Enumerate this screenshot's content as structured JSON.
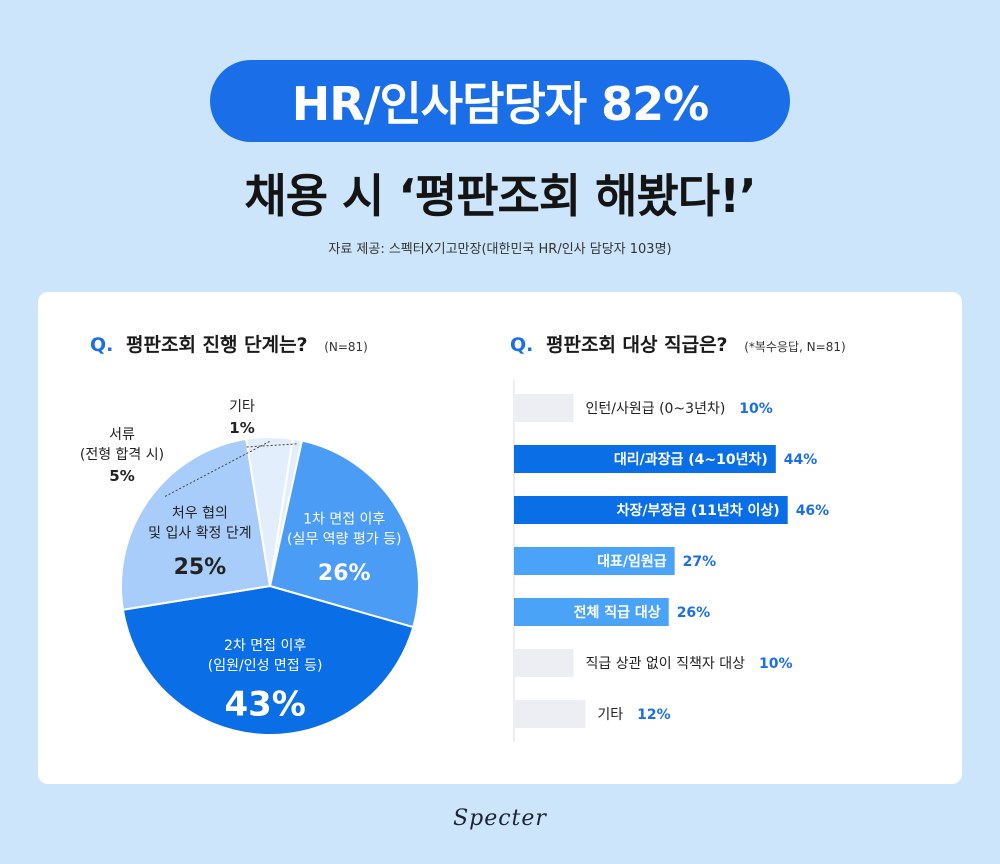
{
  "header": {
    "pill_title": "HR/인사담당자 82%",
    "headline": "채용 시 ‘평판조회 해봤다!’",
    "source": "자료 제공: 스펙터X기고만장(대한민국 HR/인사 담당자 103명)"
  },
  "left_question": {
    "q": "Q.",
    "text": "평판조회 진행 단계는?",
    "note": "(N=81)"
  },
  "right_question": {
    "q": "Q.",
    "text": "평판조회 대상 직급은?",
    "note": "(*복수응답, N=81)"
  },
  "colors": {
    "accent": "#1a6fe8",
    "pie": [
      "#0a6ee6",
      "#4a9cf5",
      "#a9cdfa",
      "#e2eefc"
    ],
    "bars_high": "#0a6ee6",
    "bars_mid": "#4aa3f7",
    "bars_low": "#eceef3",
    "value_blue": "#1a6fe8"
  },
  "chart_data": [
    {
      "type": "pie",
      "title": "평판조회 진행 단계는?",
      "slices": [
        {
          "label": [
            "2차 면접 이후",
            "(임원/인성 면접 등)"
          ],
          "value": 43,
          "display": "43%"
        },
        {
          "label": [
            "처우 협의",
            "및 입사 확정 단계"
          ],
          "value": 25,
          "display": "25%"
        },
        {
          "label": [
            "서류",
            "(전형 합격 시)"
          ],
          "value": 5,
          "display": "5%"
        },
        {
          "label": [
            "기타"
          ],
          "value": 1,
          "display": "1%"
        },
        {
          "label": [
            "1차 면접 이후",
            "(실무 역량 평가 등)"
          ],
          "value": 26,
          "display": "26%"
        }
      ]
    },
    {
      "type": "bar",
      "orientation": "horizontal",
      "title": "평판조회 대상 직급은?",
      "categories": [
        "인턴/사원급 (0~3년차)",
        "대리/과장급 (4~10년차)",
        "차장/부장급 (11년차 이상)",
        "대표/임원급",
        "전체 직급 대상",
        "직급 상관 없이 직책자 대상",
        "기타"
      ],
      "values": [
        10,
        44,
        46,
        27,
        26,
        10,
        12
      ],
      "labels": [
        "10%",
        "44%",
        "46%",
        "27%",
        "26%",
        "10%",
        "12%"
      ]
    }
  ],
  "footer": {
    "logo": "Specter"
  }
}
